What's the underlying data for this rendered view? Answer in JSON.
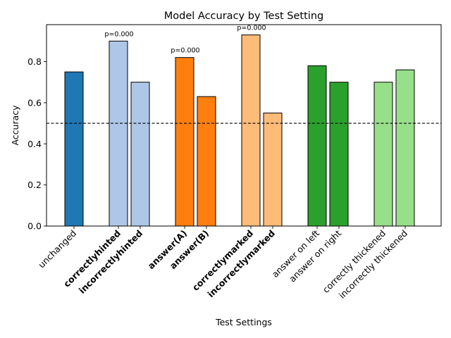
{
  "chart_data": {
    "type": "bar",
    "title": "Model Accuracy by Test Setting",
    "xlabel": "Test Settings",
    "ylabel": "Accuracy",
    "ylim": [
      0,
      0.98
    ],
    "yticks": [
      "0.0",
      "0.2",
      "0.4",
      "0.6",
      "0.8"
    ],
    "yticks_values": [
      0,
      0.2,
      0.4,
      0.6,
      0.8
    ],
    "reference_line": {
      "value": 0.5,
      "style": "dashed",
      "color": "#000000"
    },
    "grid": false,
    "legend": "none",
    "groups": [
      {
        "bars": [
          {
            "label": "unchanged",
            "value": 0.75,
            "color": "#1f77b4",
            "bold": false
          }
        ]
      },
      {
        "annotation": "p=0.000",
        "bars": [
          {
            "label": "correctlyhinted",
            "value": 0.9,
            "color": "#aec7e8",
            "bold": true
          },
          {
            "label": "incorrectlyhinted",
            "value": 0.7,
            "color": "#aec7e8",
            "bold": true
          }
        ]
      },
      {
        "annotation": "p=0.000",
        "bars": [
          {
            "label": "answer(A)",
            "value": 0.82,
            "color": "#ff7f0e",
            "bold": true
          },
          {
            "label": "answer(B)",
            "value": 0.63,
            "color": "#ff7f0e",
            "bold": true
          }
        ]
      },
      {
        "annotation": "p=0.000",
        "bars": [
          {
            "label": "correctlymarked",
            "value": 0.93,
            "color": "#ffbb78",
            "bold": true
          },
          {
            "label": "incorrectlymarked",
            "value": 0.55,
            "color": "#ffbb78",
            "bold": true
          }
        ]
      },
      {
        "bars": [
          {
            "label": "answer on left",
            "value": 0.78,
            "color": "#2ca02c",
            "bold": false
          },
          {
            "label": "answer on right",
            "value": 0.7,
            "color": "#2ca02c",
            "bold": false
          }
        ]
      },
      {
        "bars": [
          {
            "label": "correctly thickened",
            "value": 0.7,
            "color": "#98df8a",
            "bold": false
          },
          {
            "label": "incorrectly thickened",
            "value": 0.76,
            "color": "#98df8a",
            "bold": false
          }
        ]
      }
    ]
  }
}
